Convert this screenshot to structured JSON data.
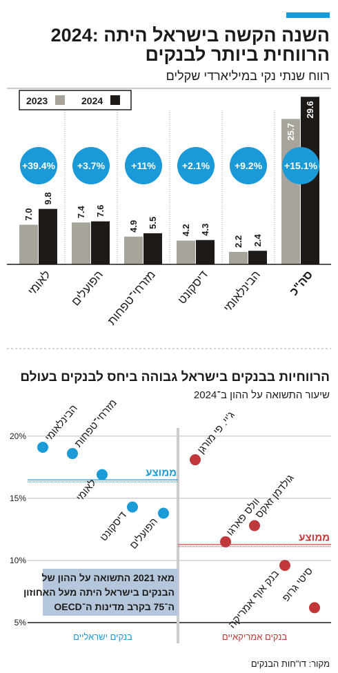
{
  "chart_data": [
    {
      "type": "bar",
      "title": [
        "2024: השנה הקשה בישראל היתה",
        "הרווחית ביותר לבנקים"
      ],
      "subtitle": "רווח שנתי נקי במיליארדי שקלים",
      "categories": [
        "לאומי",
        "הפועלים",
        "מזרחי־טפחות",
        "דיסקונט",
        "הבינלאומי",
        "סה\"כ"
      ],
      "series": [
        {
          "name": "2023",
          "color": "#a6a49b",
          "values": [
            7.0,
            7.4,
            4.9,
            4.2,
            2.2,
            25.7
          ],
          "value_labels": [
            "7.0",
            "7.4",
            "4.9",
            "4.2",
            "2.2",
            "25.7"
          ]
        },
        {
          "name": "2024",
          "color": "#1e1a17",
          "values": [
            9.8,
            7.6,
            5.5,
            4.3,
            2.4,
            29.6
          ],
          "value_labels": [
            "9.8",
            "7.6",
            "5.5",
            "4.3",
            "2.4",
            "29.6"
          ]
        }
      ],
      "change_labels": [
        "+39.4%",
        "+3.7%",
        "+11%",
        "+2.1%",
        "+9.2%",
        "+15.1%"
      ],
      "change_color": "#1a9ad6"
    },
    {
      "type": "dot",
      "title": "הרווחיות בבנקים בישראל גבוהה ביחס לבנקים בעולם",
      "subtitle": "שיעור התשואה על ההון ב־2024",
      "ylim": [
        5,
        21.1
      ],
      "yticks": [
        {
          "value": 5,
          "label": "5%"
        },
        {
          "value": 10,
          "label": "10%"
        },
        {
          "value": 15,
          "label": "15%"
        },
        {
          "value": 20,
          "label": "20%"
        }
      ],
      "groups": [
        {
          "name": "בנקים ישראליים",
          "color": "#1a9ad6",
          "categories": [
            "הבינלאומי",
            "מזרחי־טפחות",
            "לאומי",
            "דיסקונט",
            "הפועלים"
          ],
          "values": [
            19.1,
            18.6,
            16.9,
            14.3,
            13.8
          ],
          "average": 16.4,
          "average_label": "ממוצע"
        },
        {
          "name": "בנקים אמריקאיים",
          "color": "#c0383a",
          "categories": [
            "ג'יי. פי מורגן",
            "וולס פארגו",
            "גולדמן זאקס",
            "בנק אוף אמריקה",
            "סיטי גרופ"
          ],
          "values": [
            18.1,
            11.5,
            12.8,
            9.6,
            6.2
          ],
          "average": 11.2,
          "average_label": "ממוצע"
        }
      ],
      "note": [
        "מאז 2021 התשואה על ההון של",
        "הבנקים בישראל היתה מעל האחוזון",
        "ה־75 בקרב מדינות ה־OECD"
      ]
    }
  ],
  "source": "מקור: דו\"חות הבנקים"
}
